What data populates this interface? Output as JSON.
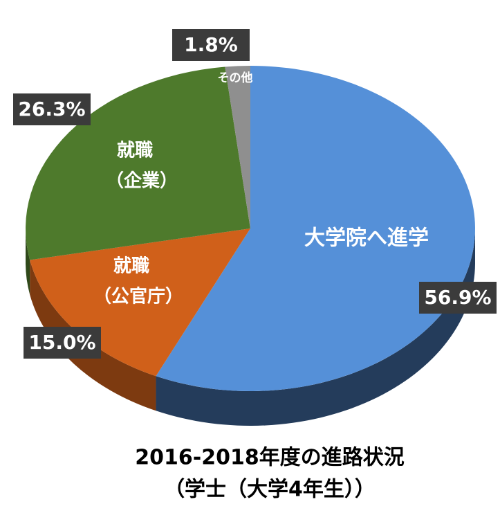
{
  "chart_data": {
    "type": "pie",
    "title": [
      "2016-2018年度の進路状況",
      "（学士（大学4年生））"
    ],
    "categories": [
      [
        "大学院へ進学"
      ],
      [
        "就職",
        "（公官庁）"
      ],
      [
        "就職",
        "（企業）"
      ],
      [
        "その他"
      ]
    ],
    "values": [
      56.9,
      15.0,
      26.3,
      1.8
    ],
    "value_labels": [
      "56.9%",
      "15.0%",
      "26.3%",
      "1.8%"
    ],
    "colors": [
      "#5590d8",
      "#d0601a",
      "#4e7a2c",
      "#8f8f8f"
    ]
  }
}
